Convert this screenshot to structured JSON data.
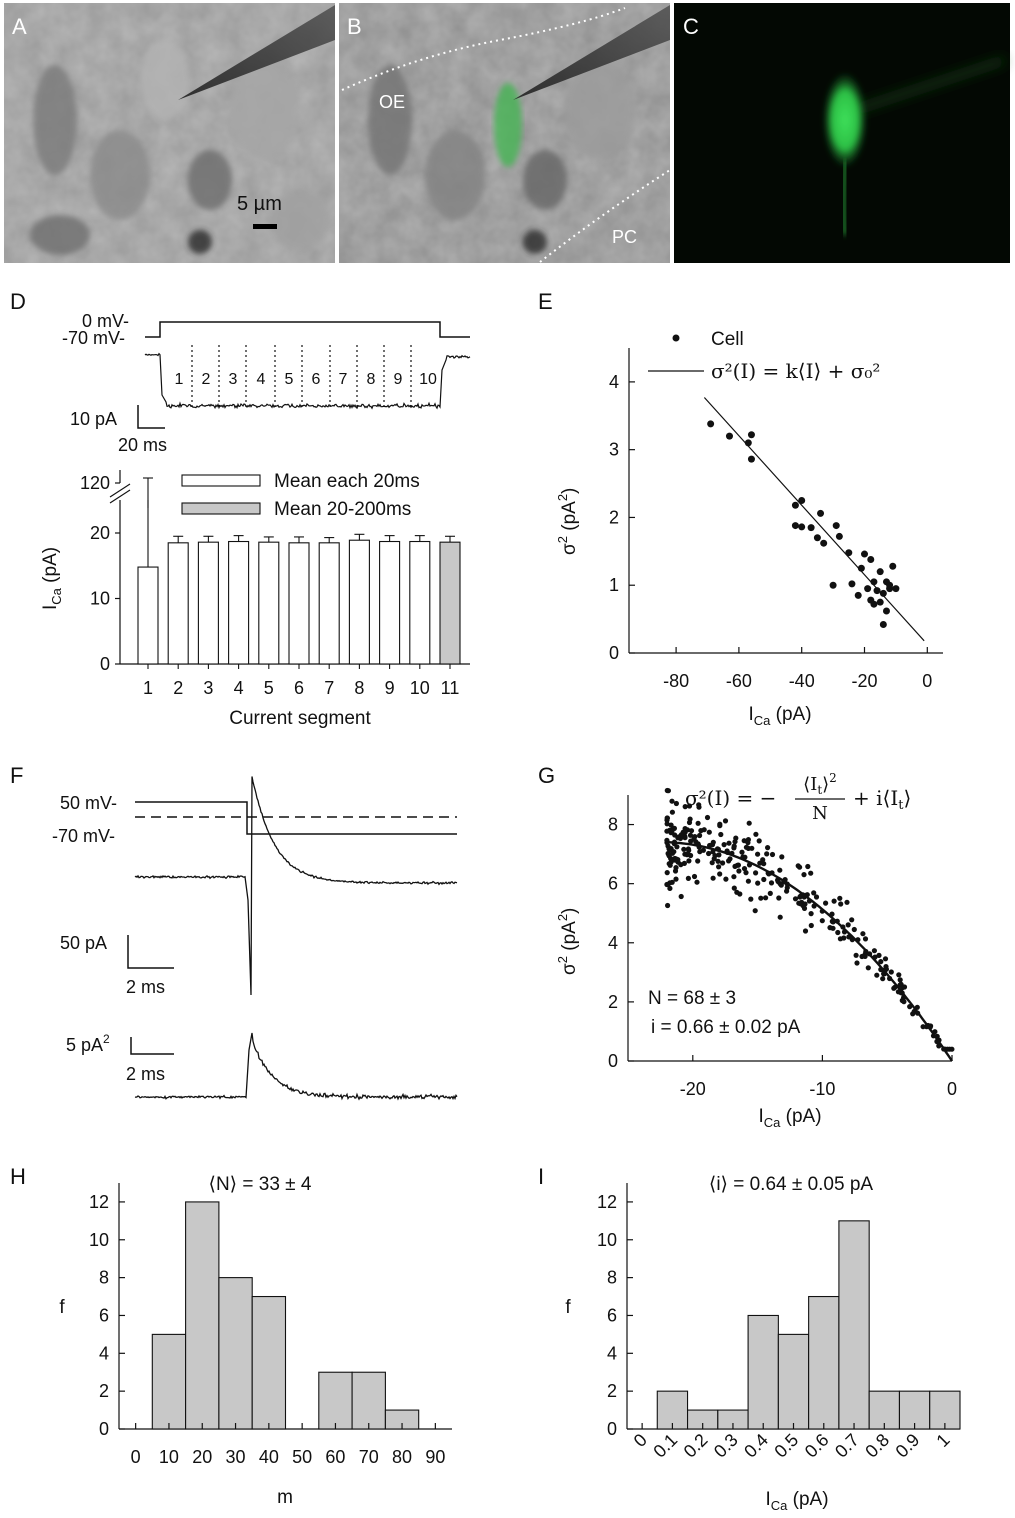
{
  "panel_labels": [
    "A",
    "B",
    "C",
    "D",
    "E",
    "F",
    "G",
    "H",
    "I"
  ],
  "micrographs": {
    "scale_label": "5 µm",
    "region_labels": [
      "OE",
      "PC"
    ]
  },
  "panel_d": {
    "voltage_labels": [
      "0 mV-",
      "-70 mV-"
    ],
    "scale_current": "10 pA",
    "scale_time": "20 ms",
    "segment_labels": [
      "1",
      "2",
      "3",
      "4",
      "5",
      "6",
      "7",
      "8",
      "9",
      "10"
    ]
  },
  "panel_f": {
    "voltage_labels": [
      "50 mV-",
      "-70 mV-"
    ],
    "scale_current": "50 pA",
    "scale_time_1": "2 ms",
    "scale_variance": "5 pA",
    "scale_variance_sup": "2",
    "scale_time_2": "2 ms"
  },
  "colors": {
    "bar_white": "#ffffff",
    "bar_gray": "#c8c8c8",
    "gfp": "#2fd24a",
    "axis": "#111111"
  },
  "chart_data": [
    {
      "id": "D",
      "type": "bar",
      "categories": [
        "1",
        "2",
        "3",
        "4",
        "5",
        "6",
        "7",
        "8",
        "9",
        "10",
        "11"
      ],
      "values": [
        14.8,
        18.5,
        18.6,
        18.7,
        18.6,
        18.5,
        18.5,
        18.9,
        18.7,
        18.7,
        18.6
      ],
      "errors": [
        106,
        1.0,
        0.9,
        0.9,
        0.8,
        0.9,
        0.8,
        0.9,
        0.9,
        0.9,
        0.9
      ],
      "xlabel": "Current segment",
      "ylabel": "I",
      "ylabel_sub": "Ca",
      "ylabel_unit": " (pA)",
      "yticks": [
        "0",
        "10",
        "20",
        "120"
      ],
      "ylim": [
        0,
        20
      ],
      "axis_break": [
        20,
        120
      ],
      "legend": {
        "placement": "top",
        "entries": [
          "Mean each 20ms",
          "Mean 20-200ms"
        ]
      }
    },
    {
      "id": "E",
      "type": "scatter",
      "points": [
        [
          -69,
          3.38
        ],
        [
          -63,
          3.2
        ],
        [
          -57,
          3.1
        ],
        [
          -56,
          3.22
        ],
        [
          -56,
          2.86
        ],
        [
          -42,
          2.18
        ],
        [
          -40,
          2.25
        ],
        [
          -42,
          1.88
        ],
        [
          -40,
          1.86
        ],
        [
          -37,
          1.85
        ],
        [
          -34,
          2.06
        ],
        [
          -35,
          1.7
        ],
        [
          -33,
          1.62
        ],
        [
          -29,
          1.88
        ],
        [
          -28,
          1.72
        ],
        [
          -25,
          1.48
        ],
        [
          -24,
          1.02
        ],
        [
          -21,
          1.25
        ],
        [
          -20,
          1.46
        ],
        [
          -18,
          1.38
        ],
        [
          -17,
          1.05
        ],
        [
          -16,
          0.92
        ],
        [
          -15,
          1.2
        ],
        [
          -13,
          1.05
        ],
        [
          -12,
          0.95
        ],
        [
          -11,
          1.28
        ],
        [
          -10,
          0.95
        ],
        [
          -18,
          0.78
        ],
        [
          -17,
          0.72
        ],
        [
          -15,
          0.75
        ],
        [
          -14,
          0.88
        ],
        [
          -13,
          0.62
        ],
        [
          -19,
          0.95
        ],
        [
          -14,
          0.42
        ],
        [
          -12,
          1.0
        ],
        [
          -22,
          0.85
        ],
        [
          -30,
          1.0
        ]
      ],
      "fit_line": [
        [
          -71,
          3.77
        ],
        [
          -1,
          0.18
        ]
      ],
      "xlabel": "I",
      "xlabel_sub": "Ca",
      "xlabel_unit": " (pA)",
      "ylabel": "σ",
      "ylabel_sup": "2",
      "ylabel_unit": " (pA",
      "ylabel_unit_sup": "2",
      "ylabel_close": ")",
      "xticks": [
        "-80",
        "-60",
        "-40",
        "-20",
        "0"
      ],
      "yticks": [
        "0",
        "1",
        "2",
        "3",
        "4"
      ],
      "xlim": [
        -95,
        5
      ],
      "ylim": [
        0,
        4.5
      ],
      "legend": {
        "placement": "top",
        "entries": [
          "Cell",
          "σ²(I) = k⟨I⟩ + σ₀²"
        ]
      }
    },
    {
      "id": "G",
      "type": "scatter",
      "fit": {
        "N": 68,
        "i": 0.66
      },
      "x_range": [
        -22,
        0
      ],
      "noise_n": 300,
      "equation_lhs": "σ²(I) = −",
      "equation_num": "⟨I",
      "equation_num_sub": "t",
      "equation_num_end": "⟩",
      "equation_num_sup": "2",
      "equation_den": "N",
      "equation_rhs": "+ i⟨I",
      "equation_rhs_sub": "t",
      "equation_rhs_end": "⟩",
      "annotations": [
        "N = 68 ± 3",
        "i = 0.66 ± 0.02 pA"
      ],
      "xlabel": "I",
      "xlabel_sub": "Ca",
      "xlabel_unit": " (pA)",
      "ylabel": "σ",
      "ylabel_sup": "2",
      "ylabel_unit": " (pA",
      "ylabel_unit_sup": "2",
      "ylabel_close": ")",
      "xticks": [
        "-20",
        "-10",
        "0"
      ],
      "yticks": [
        "0",
        "2",
        "4",
        "6",
        "8"
      ],
      "xlim": [
        -25,
        0
      ],
      "ylim": [
        0,
        9
      ]
    },
    {
      "id": "H",
      "type": "bar",
      "title": "⟨N⟩ = 33 ± 4",
      "bin_edges": [
        5,
        15,
        25,
        35,
        45,
        55,
        65,
        75,
        85
      ],
      "values": [
        5,
        12,
        8,
        7,
        0,
        3,
        3,
        1
      ],
      "xlabel": "m",
      "ylabel": "f",
      "xticks": [
        "0",
        "10",
        "20",
        "30",
        "40",
        "50",
        "60",
        "70",
        "80",
        "90"
      ],
      "yticks": [
        "0",
        "2",
        "4",
        "6",
        "8",
        "10",
        "12"
      ],
      "xlim": [
        -5,
        95
      ],
      "ylim": [
        0,
        13
      ]
    },
    {
      "id": "I",
      "type": "bar",
      "title": "⟨i⟩ = 0.64 ± 0.05 pA",
      "bin_edges": [
        0.05,
        0.15,
        0.25,
        0.35,
        0.45,
        0.55,
        0.65,
        0.75,
        0.85,
        0.95,
        1.05
      ],
      "values": [
        2,
        1,
        1,
        6,
        5,
        7,
        11,
        2,
        2,
        2
      ],
      "xlabel": "I",
      "xlabel_sub": "Ca",
      "xlabel_unit": " (pA)",
      "ylabel": "f",
      "xticks": [
        "0",
        "0.1",
        "0.2",
        "0.3",
        "0.4",
        "0.5",
        "0.6",
        "0.7",
        "0.8",
        "0.9",
        "1"
      ],
      "yticks": [
        "0",
        "2",
        "4",
        "6",
        "8",
        "10",
        "12"
      ],
      "xlim": [
        -0.05,
        1.05
      ],
      "ylim": [
        0,
        13
      ]
    }
  ]
}
